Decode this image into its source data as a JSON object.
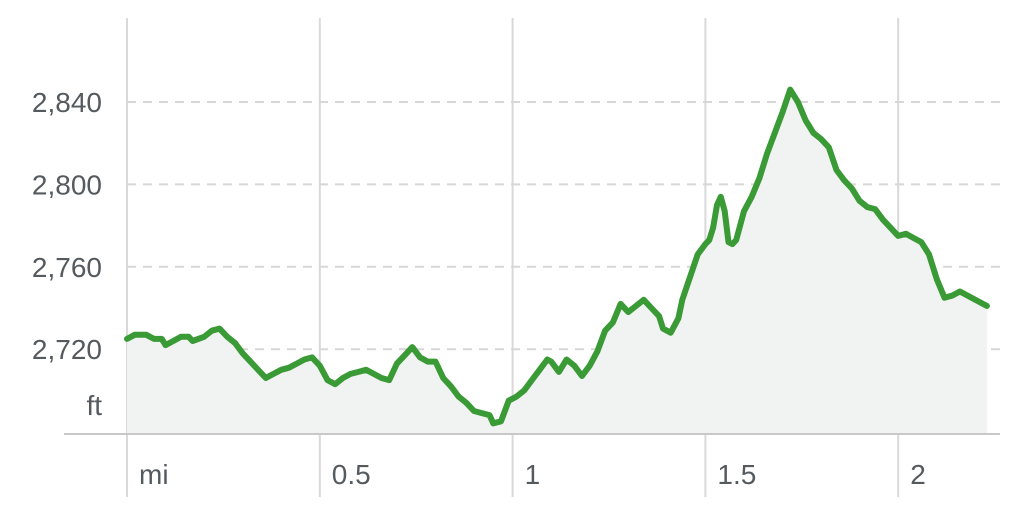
{
  "chart_data": {
    "type": "area",
    "x_unit": "mi",
    "y_unit": "ft",
    "xlim": [
      -0.02,
      2.23
    ],
    "ylim": [
      2681,
      2878
    ],
    "x_ticks": [
      {
        "value": 0,
        "label": "mi"
      },
      {
        "value": 0.5,
        "label": "0.5"
      },
      {
        "value": 1,
        "label": "1"
      },
      {
        "value": 1.5,
        "label": "1.5"
      },
      {
        "value": 2,
        "label": "2"
      }
    ],
    "y_ticks": [
      {
        "value": 2720,
        "label": "2,720"
      },
      {
        "value": 2760,
        "label": "2,760"
      },
      {
        "value": 2800,
        "label": "2,800"
      },
      {
        "value": 2840,
        "label": "2,840"
      }
    ],
    "grid": {
      "x": "solid",
      "y": "dashed"
    },
    "colors": {
      "line": "#3a9a35",
      "fill": "#f1f2f2",
      "grid": "#d9d9d9",
      "text": "#555a5f"
    },
    "series": [
      {
        "points": [
          [
            0.0,
            2725
          ],
          [
            0.02,
            2727
          ],
          [
            0.05,
            2727
          ],
          [
            0.07,
            2725
          ],
          [
            0.09,
            2725
          ],
          [
            0.1,
            2722
          ],
          [
            0.12,
            2724
          ],
          [
            0.14,
            2726
          ],
          [
            0.16,
            2726
          ],
          [
            0.17,
            2724
          ],
          [
            0.2,
            2726
          ],
          [
            0.22,
            2729
          ],
          [
            0.24,
            2730
          ],
          [
            0.26,
            2726
          ],
          [
            0.28,
            2723
          ],
          [
            0.3,
            2718
          ],
          [
            0.32,
            2714
          ],
          [
            0.34,
            2710
          ],
          [
            0.36,
            2706
          ],
          [
            0.38,
            2708
          ],
          [
            0.4,
            2710
          ],
          [
            0.42,
            2711
          ],
          [
            0.44,
            2713
          ],
          [
            0.46,
            2715
          ],
          [
            0.48,
            2716
          ],
          [
            0.5,
            2712
          ],
          [
            0.52,
            2705
          ],
          [
            0.54,
            2703
          ],
          [
            0.56,
            2706
          ],
          [
            0.58,
            2708
          ],
          [
            0.6,
            2709
          ],
          [
            0.62,
            2710
          ],
          [
            0.64,
            2708
          ],
          [
            0.66,
            2706
          ],
          [
            0.68,
            2705
          ],
          [
            0.7,
            2713
          ],
          [
            0.72,
            2717
          ],
          [
            0.74,
            2721
          ],
          [
            0.76,
            2716
          ],
          [
            0.78,
            2714
          ],
          [
            0.8,
            2714
          ],
          [
            0.82,
            2706
          ],
          [
            0.84,
            2702
          ],
          [
            0.86,
            2697
          ],
          [
            0.88,
            2694
          ],
          [
            0.9,
            2690
          ],
          [
            0.92,
            2689
          ],
          [
            0.94,
            2688
          ],
          [
            0.95,
            2684
          ],
          [
            0.97,
            2685
          ],
          [
            0.99,
            2695
          ],
          [
            1.01,
            2697
          ],
          [
            1.03,
            2700
          ],
          [
            1.05,
            2705
          ],
          [
            1.07,
            2710
          ],
          [
            1.09,
            2715
          ],
          [
            1.1,
            2714
          ],
          [
            1.12,
            2709
          ],
          [
            1.14,
            2715
          ],
          [
            1.16,
            2712
          ],
          [
            1.18,
            2707
          ],
          [
            1.2,
            2712
          ],
          [
            1.22,
            2719
          ],
          [
            1.24,
            2729
          ],
          [
            1.26,
            2733
          ],
          [
            1.28,
            2742
          ],
          [
            1.3,
            2738
          ],
          [
            1.32,
            2741
          ],
          [
            1.34,
            2744
          ],
          [
            1.36,
            2740
          ],
          [
            1.38,
            2736
          ],
          [
            1.39,
            2730
          ],
          [
            1.41,
            2728
          ],
          [
            1.43,
            2735
          ],
          [
            1.44,
            2744
          ],
          [
            1.46,
            2755
          ],
          [
            1.48,
            2766
          ],
          [
            1.5,
            2771
          ],
          [
            1.51,
            2773
          ],
          [
            1.52,
            2779
          ],
          [
            1.53,
            2790
          ],
          [
            1.54,
            2794
          ],
          [
            1.55,
            2787
          ],
          [
            1.56,
            2772
          ],
          [
            1.57,
            2771
          ],
          [
            1.58,
            2773
          ],
          [
            1.6,
            2787
          ],
          [
            1.62,
            2794
          ],
          [
            1.64,
            2803
          ],
          [
            1.66,
            2815
          ],
          [
            1.68,
            2825
          ],
          [
            1.7,
            2835
          ],
          [
            1.72,
            2846
          ],
          [
            1.74,
            2840
          ],
          [
            1.76,
            2831
          ],
          [
            1.78,
            2825
          ],
          [
            1.8,
            2822
          ],
          [
            1.82,
            2818
          ],
          [
            1.84,
            2807
          ],
          [
            1.86,
            2802
          ],
          [
            1.88,
            2798
          ],
          [
            1.9,
            2792
          ],
          [
            1.92,
            2789
          ],
          [
            1.94,
            2788
          ],
          [
            1.96,
            2783
          ],
          [
            1.98,
            2779
          ],
          [
            2.0,
            2775
          ],
          [
            2.02,
            2776
          ],
          [
            2.04,
            2774
          ],
          [
            2.06,
            2772
          ],
          [
            2.08,
            2766
          ],
          [
            2.1,
            2754
          ],
          [
            2.12,
            2745
          ],
          [
            2.14,
            2746
          ],
          [
            2.16,
            2748
          ],
          [
            2.18,
            2746
          ],
          [
            2.2,
            2744
          ],
          [
            2.22,
            2742
          ],
          [
            2.23,
            2741
          ]
        ]
      }
    ]
  }
}
